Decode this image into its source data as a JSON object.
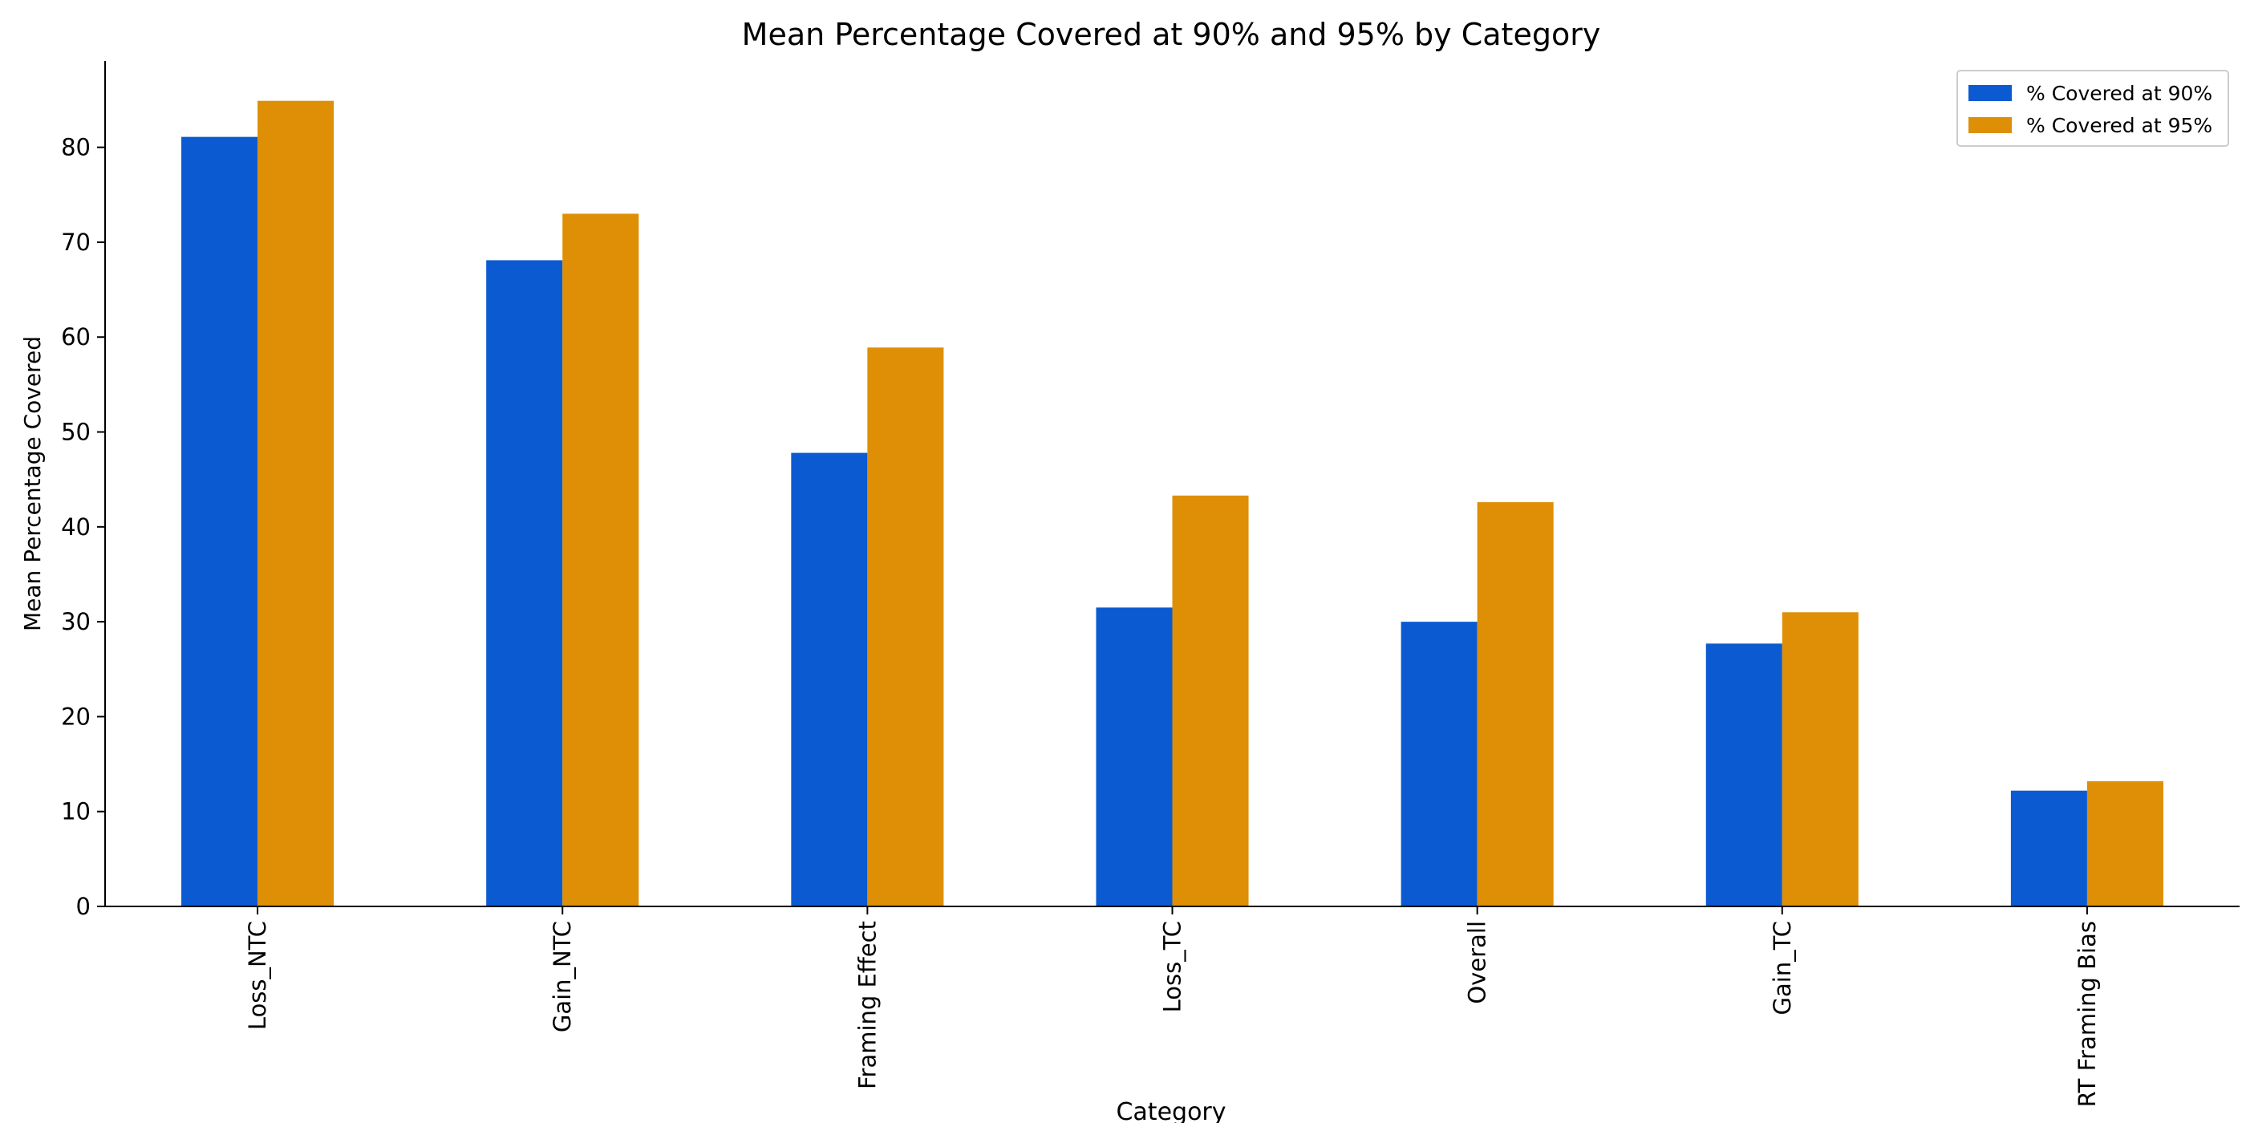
{
  "chart_data": {
    "type": "bar",
    "title": "Mean Percentage Covered at 90% and 95% by Category",
    "xlabel": "Category",
    "ylabel": "Mean Percentage Covered",
    "categories": [
      "Loss_NTC",
      "Gain_NTC",
      "Framing Effect",
      "Loss_TC",
      "Overall",
      "Gain_TC",
      "RT Framing Bias"
    ],
    "series": [
      {
        "name": "% Covered at 90%",
        "color": "#0b5ad1",
        "values": [
          81.1,
          68.1,
          47.8,
          31.5,
          30.0,
          27.7,
          12.2
        ]
      },
      {
        "name": "% Covered at 95%",
        "color": "#de8f05",
        "values": [
          84.9,
          73.0,
          58.9,
          43.3,
          42.6,
          31.0,
          13.2
        ]
      }
    ],
    "ylim": [
      0,
      89.1
    ],
    "yticks": [
      0,
      10,
      20,
      30,
      40,
      50,
      60,
      70,
      80
    ],
    "legend": "upper right"
  }
}
